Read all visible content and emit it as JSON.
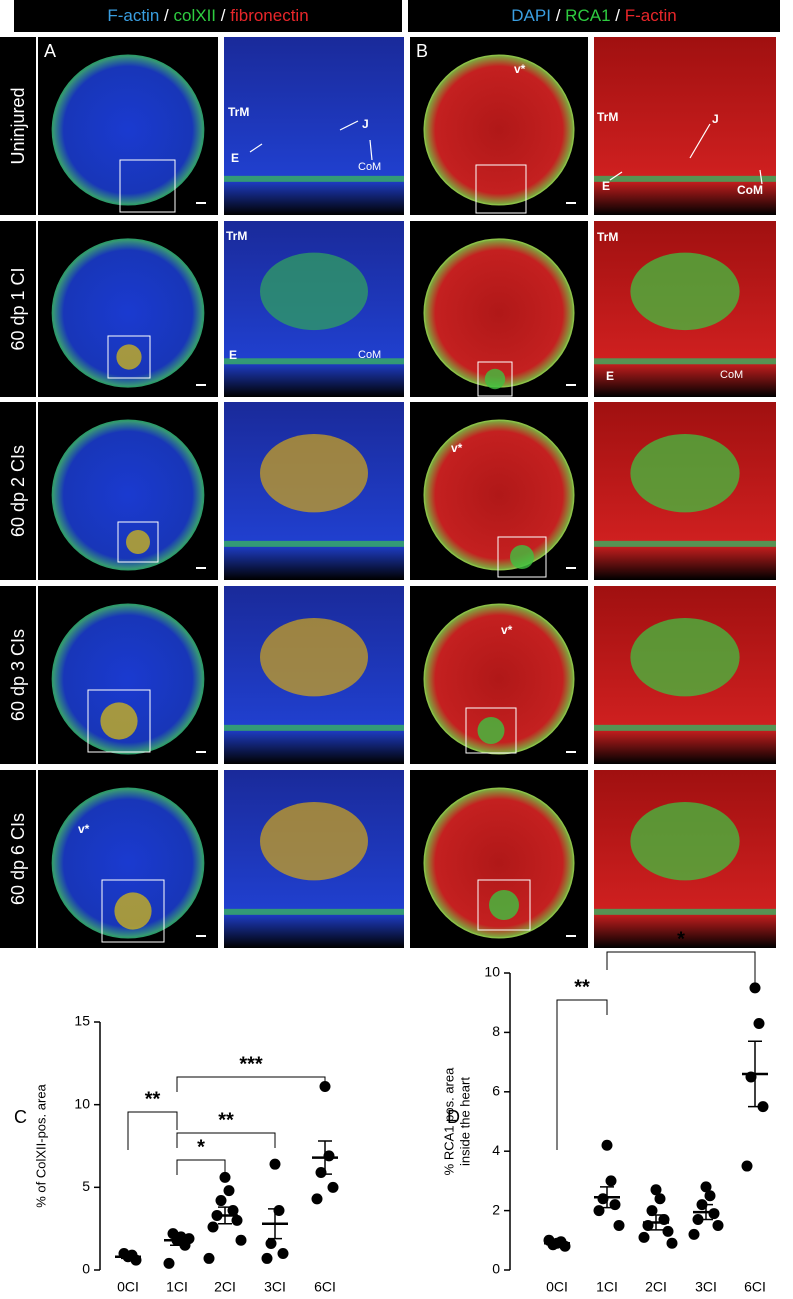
{
  "header": {
    "left": [
      {
        "text": "F-actin",
        "color": "#3a9ee0"
      },
      {
        "text": "/",
        "color": "#ffffff"
      },
      {
        "text": "colXII",
        "color": "#2ecc40"
      },
      {
        "text": "/",
        "color": "#ffffff"
      },
      {
        "text": "fibronectin",
        "color": "#e8262a"
      }
    ],
    "right": [
      {
        "text": "DAPI",
        "color": "#3a9ee0"
      },
      {
        "text": "/",
        "color": "#ffffff"
      },
      {
        "text": "RCA1",
        "color": "#2ecc40"
      },
      {
        "text": "/",
        "color": "#ffffff"
      },
      {
        "text": "F-actin",
        "color": "#e8262a"
      }
    ]
  },
  "rows": [
    "Uninjured",
    "60 dp 1 CI",
    "60 dp 2 CIs",
    "60 dp 3 CIs",
    "60 dp 6 CIs"
  ],
  "panel_labels": {
    "a": "A",
    "b": "B"
  },
  "annotations": {
    "r0a": [
      "TrM",
      "J",
      "E",
      "CoM"
    ],
    "r0b_v": "v*",
    "r0b": [
      "TrM",
      "J",
      "E",
      "CoM"
    ],
    "r1a": [
      "TrM",
      "E",
      "CoM"
    ],
    "r1b": [
      "TrM",
      "E",
      "CoM"
    ],
    "r2b_v": "v*",
    "r3b_v": "v*",
    "r4a_v": "v*"
  },
  "chart_data": [
    {
      "type": "dot",
      "panel_label": "C",
      "ylabel": [
        "% of ColXII-pos. area"
      ],
      "categories": [
        "0CI",
        "1CI",
        "2CI",
        "3CI",
        "6CI"
      ],
      "points": [
        [
          0.8,
          0.9,
          1.0,
          0.6
        ],
        [
          1.8,
          2.0,
          2.2,
          1.5,
          0.4,
          1.9
        ],
        [
          5.6,
          4.8,
          4.2,
          3.6,
          3.3,
          3.0,
          2.6,
          1.8,
          0.7
        ],
        [
          6.4,
          3.6,
          1.6,
          1.0,
          0.7
        ],
        [
          11.1,
          6.9,
          5.9,
          5.0,
          4.3
        ]
      ],
      "means": [
        0.8,
        1.8,
        3.3,
        2.8,
        6.8
      ],
      "sems": [
        0.1,
        0.3,
        0.5,
        0.9,
        1.0
      ],
      "ylim": [
        0,
        15
      ],
      "yticks": [
        0,
        5,
        10,
        15
      ],
      "significance": [
        {
          "label": "**",
          "between": [
            "0CI",
            "1CI"
          ]
        },
        {
          "label": "*",
          "between": [
            "1CI",
            "2CI"
          ]
        },
        {
          "label": "**",
          "between": [
            "1CI",
            "3CI"
          ]
        },
        {
          "label": "***",
          "between": [
            "1CI",
            "6CI"
          ]
        }
      ]
    },
    {
      "type": "dot",
      "panel_label": "D",
      "ylabel": [
        "% RCA1 pos. area",
        "inside the heart"
      ],
      "categories": [
        "0CI",
        "1CI",
        "2CI",
        "3CI",
        "6CI"
      ],
      "points": [
        [
          0.9,
          0.95,
          0.85,
          0.8,
          1.0
        ],
        [
          4.2,
          3.0,
          2.4,
          2.2,
          2.0,
          1.5
        ],
        [
          2.7,
          2.4,
          2.0,
          1.7,
          1.5,
          1.3,
          1.1,
          0.9
        ],
        [
          2.8,
          2.5,
          2.2,
          1.9,
          1.7,
          1.5,
          1.2
        ],
        [
          9.5,
          8.3,
          6.5,
          5.5,
          3.5
        ]
      ],
      "means": [
        0.9,
        2.45,
        1.6,
        1.95,
        6.6
      ],
      "sems": [
        0.1,
        0.35,
        0.25,
        0.25,
        1.1
      ],
      "ylim": [
        0,
        10
      ],
      "yticks": [
        0,
        2,
        4,
        6,
        8,
        10
      ],
      "significance": [
        {
          "label": "**",
          "between": [
            "0CI",
            "1CI"
          ]
        },
        {
          "label": "*",
          "between": [
            "1CI",
            "6CI"
          ]
        }
      ]
    }
  ]
}
